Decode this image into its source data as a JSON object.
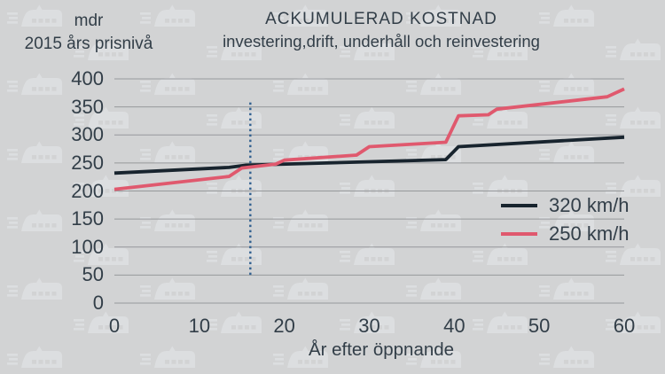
{
  "labels": {
    "title": "ACKUMULERAD KOSTNAD",
    "subtitle": "investering,drift, underhåll och reinvestering",
    "y_unit_line1": "mdr",
    "y_unit_line2": "2015 års prisnivå",
    "xlabel": "År efter öppnande"
  },
  "colors": {
    "background": "#d2d3d4",
    "watermark": "#dcdee0",
    "text": "#323e48",
    "gridline": "#96989b",
    "series_320": "#18242e",
    "series_250": "#e0596e",
    "reference_line": "#31608f"
  },
  "chart_data": {
    "type": "line",
    "title": "ACKUMULERAD KOSTNAD",
    "subtitle": "investering,drift, underhåll och reinvestering",
    "xlabel": "År efter öppnande",
    "ylabel": "mdr 2015 års prisnivå",
    "xlim": [
      0,
      60
    ],
    "ylim": [
      0,
      400
    ],
    "x_ticks": [
      0,
      10,
      20,
      30,
      40,
      50,
      60
    ],
    "y_ticks": [
      0,
      50,
      100,
      150,
      200,
      250,
      300,
      350,
      400
    ],
    "grid": "horizontal",
    "legend_position": "inside-right",
    "series": [
      {
        "name": "320 km/h",
        "color": "#18242e",
        "points": [
          [
            0,
            232
          ],
          [
            13.5,
            242
          ],
          [
            15.5,
            246
          ],
          [
            39,
            256
          ],
          [
            40.5,
            279
          ],
          [
            60,
            296
          ]
        ]
      },
      {
        "name": "250 km/h",
        "color": "#e0596e",
        "points": [
          [
            0,
            203
          ],
          [
            13.5,
            226
          ],
          [
            15,
            241
          ],
          [
            19,
            248
          ],
          [
            20,
            255
          ],
          [
            28.5,
            264
          ],
          [
            30,
            279
          ],
          [
            39,
            287
          ],
          [
            40.5,
            334
          ],
          [
            44,
            336
          ],
          [
            45,
            346
          ],
          [
            58,
            368
          ],
          [
            60,
            382
          ]
        ]
      }
    ],
    "reference_line": {
      "x": 16,
      "y_from": 50,
      "y_to": 358,
      "style": "dotted",
      "color": "#31608f"
    }
  }
}
